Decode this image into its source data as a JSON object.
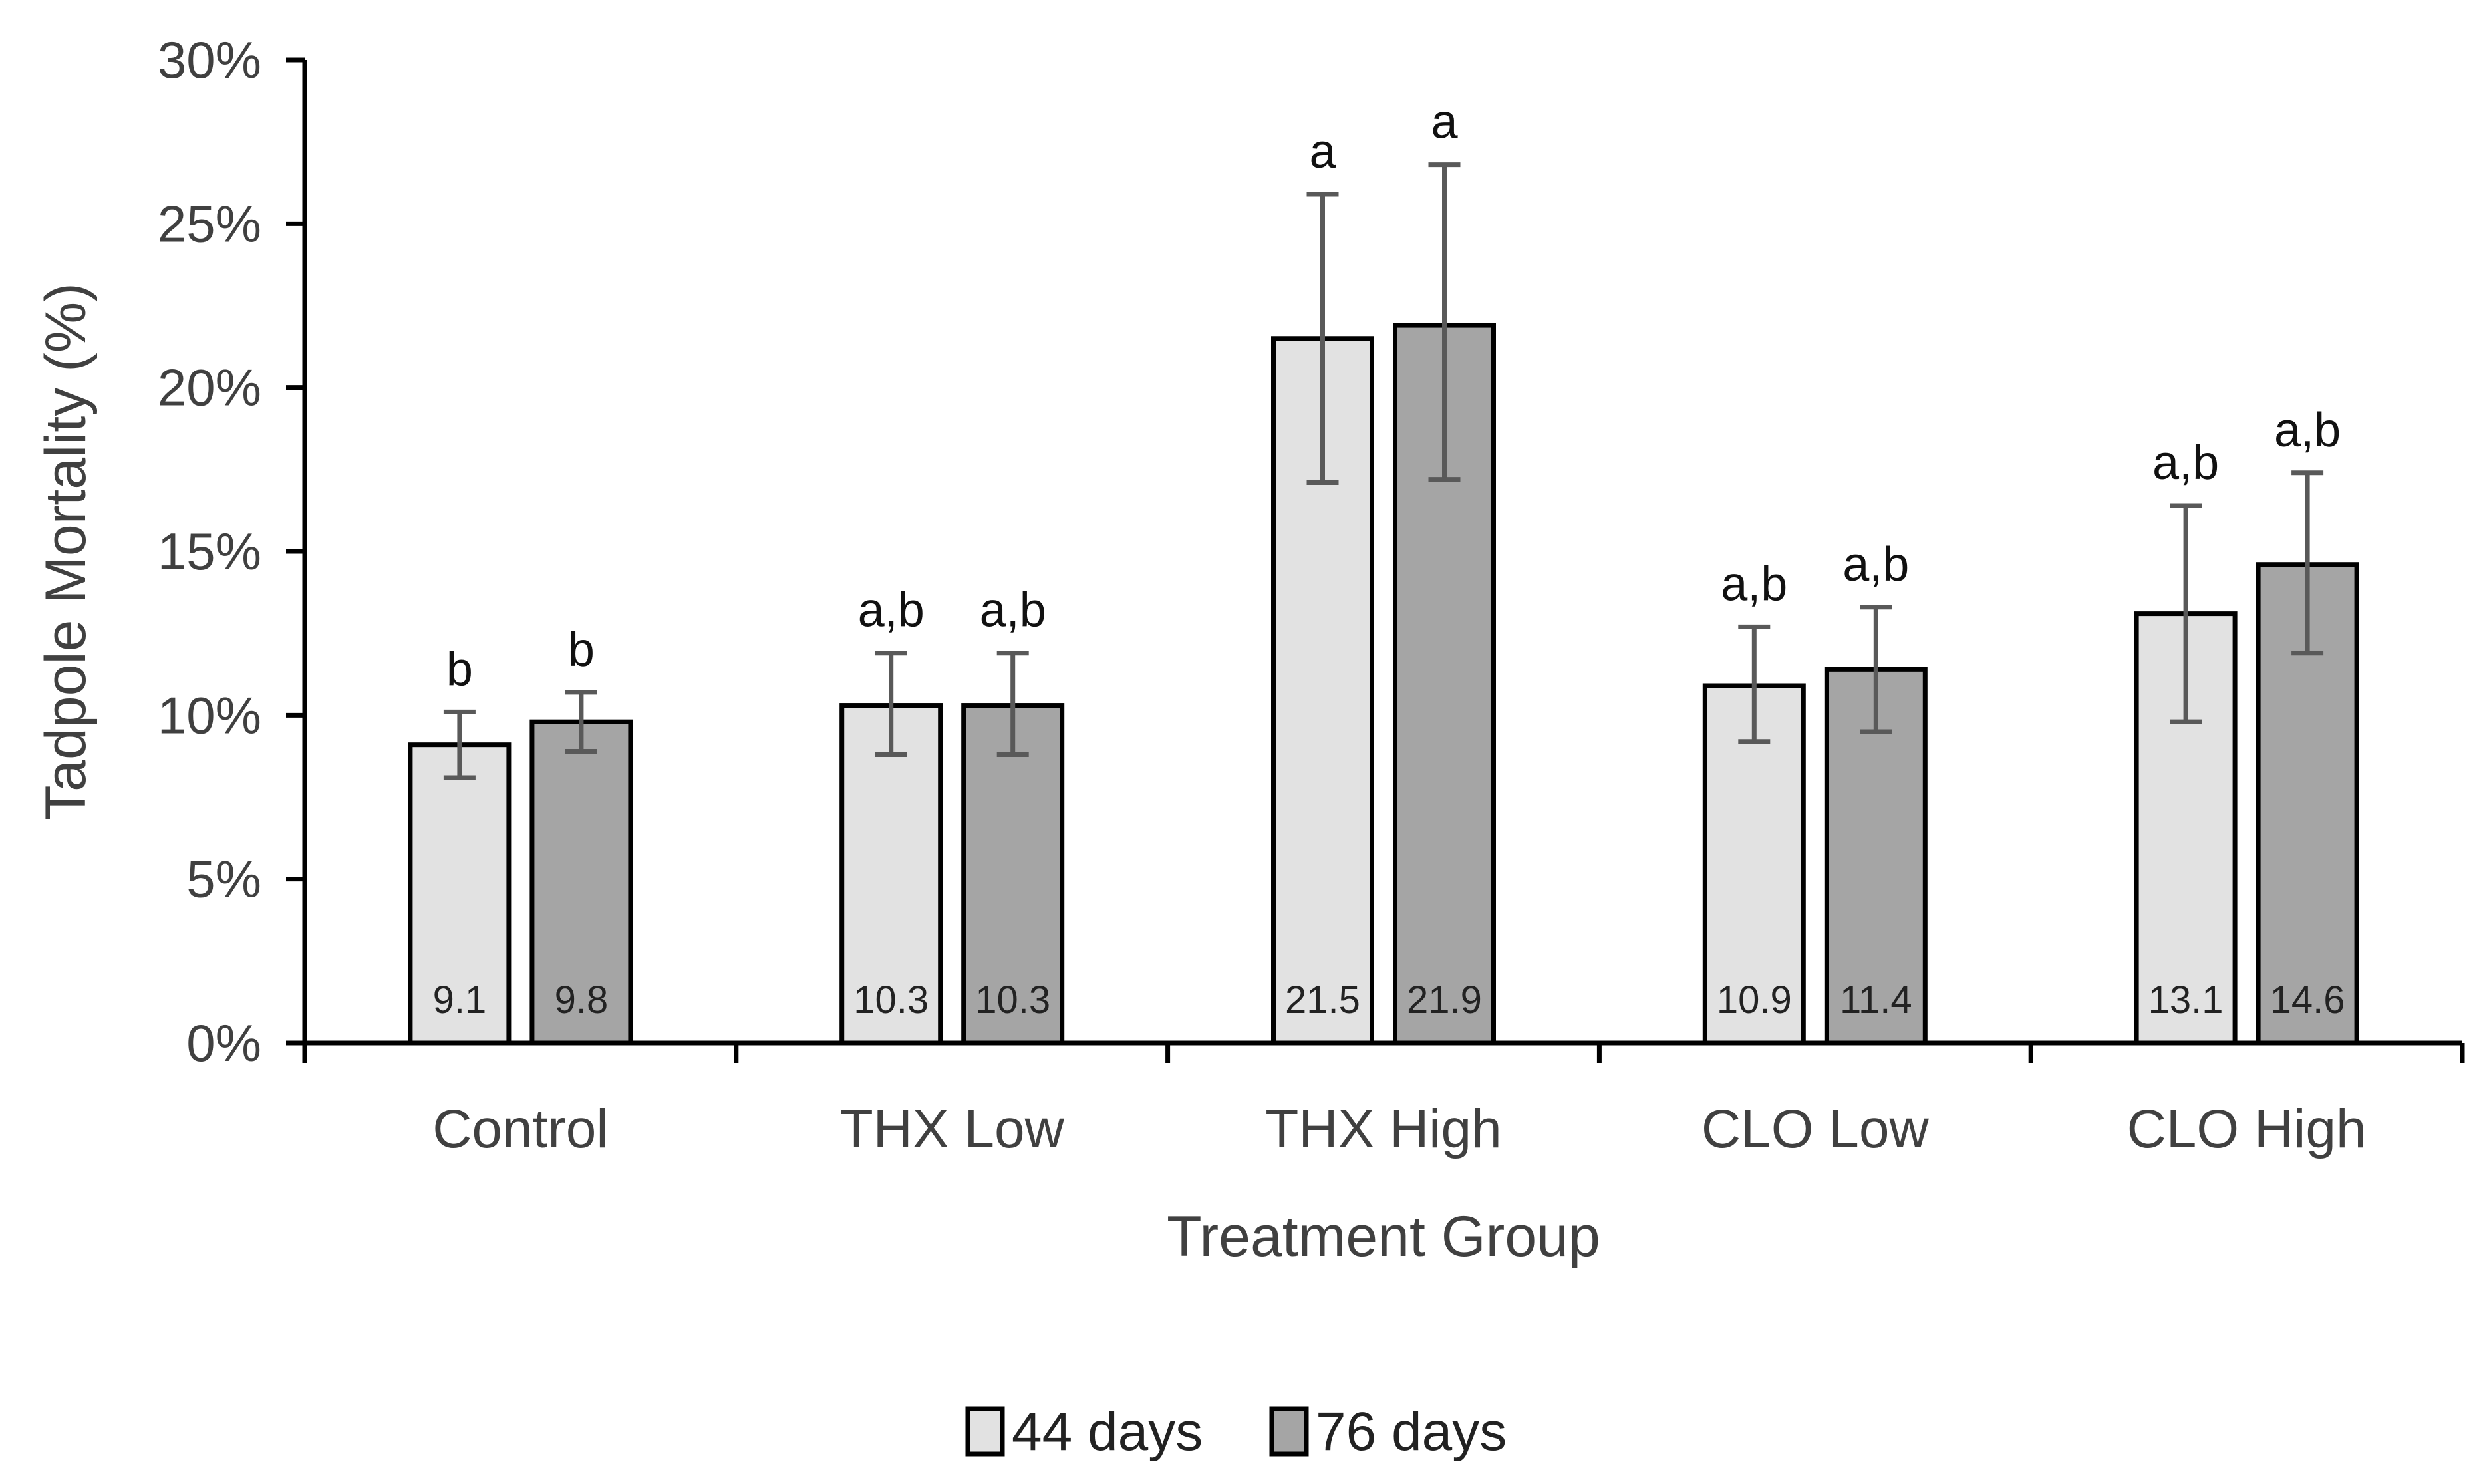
{
  "chart_data": {
    "type": "bar",
    "title": "",
    "xlabel": "Treatment Group",
    "ylabel": "Tadpole Mortality (%)",
    "ylim": [
      0,
      30
    ],
    "yticks": [
      0,
      5,
      10,
      15,
      20,
      25,
      30
    ],
    "ytick_labels": [
      "0%",
      "5%",
      "10%",
      "15%",
      "20%",
      "25%",
      "30%"
    ],
    "grid": false,
    "legend_position": "bottom-center",
    "categories": [
      "Control",
      "THX Low",
      "THX High",
      "CLO Low",
      "CLO High"
    ],
    "series": [
      {
        "name": "44 days",
        "color": "#e2e2e2",
        "values": [
          9.1,
          10.3,
          21.5,
          10.9,
          13.1
        ],
        "value_labels": [
          "9.1",
          "10.3",
          "21.5",
          "10.9",
          "13.1"
        ],
        "err_low": [
          8.1,
          8.8,
          17.1,
          9.2,
          9.8
        ],
        "err_high": [
          10.1,
          11.9,
          25.9,
          12.7,
          16.4
        ],
        "significance": [
          "b",
          "a,b",
          "a",
          "a,b",
          "a,b"
        ]
      },
      {
        "name": "76 days",
        "color": "#a5a5a5",
        "values": [
          9.8,
          10.3,
          21.9,
          11.4,
          14.6
        ],
        "value_labels": [
          "9.8",
          "10.3",
          "21.9",
          "11.4",
          "14.6"
        ],
        "err_low": [
          8.9,
          8.8,
          17.2,
          9.5,
          11.9
        ],
        "err_high": [
          10.7,
          11.9,
          26.8,
          13.3,
          17.4
        ],
        "significance": [
          "b",
          "a,b",
          "a",
          "a,b",
          "a,b"
        ]
      }
    ]
  }
}
